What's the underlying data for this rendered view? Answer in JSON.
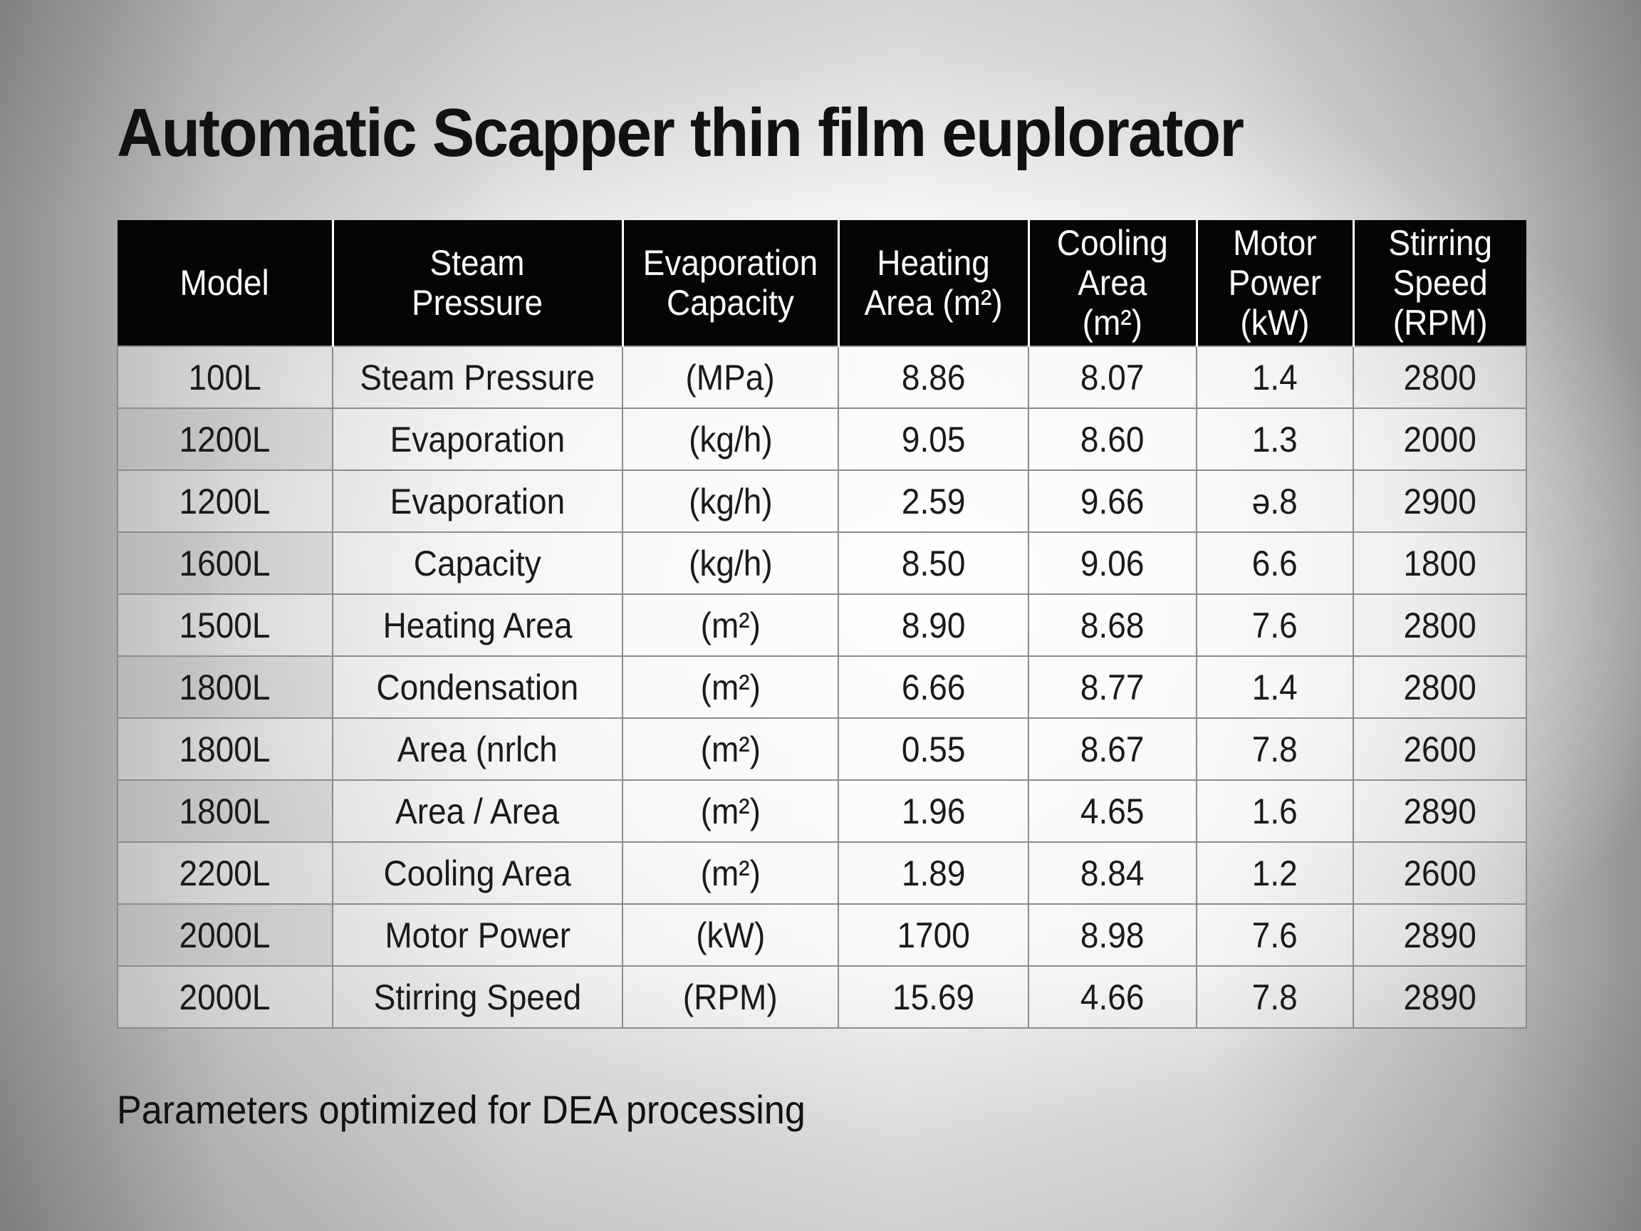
{
  "title": "Automatic Scapper thin film euplorator",
  "table": {
    "headers": [
      "Model",
      "Steam\nPressure",
      "Evaporation\nCapacity",
      "Heating\nArea (m²)",
      "Cooling\nArea\n(m²)",
      "Motor\nPower\n(kW)",
      "Stirring\nSpeed\n(RPM)"
    ],
    "rows": [
      [
        "100L",
        "Steam Pressure",
        "(MPa)",
        "8.86",
        "8.07",
        "1.4",
        "2800"
      ],
      [
        "1200L",
        "Evaporation",
        "(kg/h)",
        "9.05",
        "8.60",
        "1.3",
        "2000"
      ],
      [
        "1200L",
        "Evaporation",
        "(kg/h)",
        "2.59",
        "9.66",
        "ǝ.8",
        "2900"
      ],
      [
        "1600L",
        "Capacity",
        "(kg/h)",
        "8.50",
        "9.06",
        "6.6",
        "1800"
      ],
      [
        "1500L",
        "Heating Area",
        "(m²)",
        "8.90",
        "8.68",
        "7.6",
        "2800"
      ],
      [
        "1800L",
        "Condensation",
        "(m²)",
        "6.66",
        "8.77",
        "1.4",
        "2800"
      ],
      [
        "1800L",
        "Area (nrlch",
        "(m²)",
        "0.55",
        "8.67",
        "7.8",
        "2600"
      ],
      [
        "1800L",
        "Area / Area",
        "(m²)",
        "1.96",
        "4.65",
        "1.6",
        "2890"
      ],
      [
        "2200L",
        "Cooling Area",
        "(m²)",
        "1.89",
        "8.84",
        "1.2",
        "2600"
      ],
      [
        "2000L",
        "Motor Power",
        "(kW)",
        "1700",
        "8.98",
        "7.6",
        "2890"
      ],
      [
        "2000L",
        "Stirring Speed",
        "(RPM)",
        "15.69",
        "4.66",
        "7.8",
        "2890"
      ]
    ]
  },
  "footnote": "Parameters optimized for DEA processing"
}
